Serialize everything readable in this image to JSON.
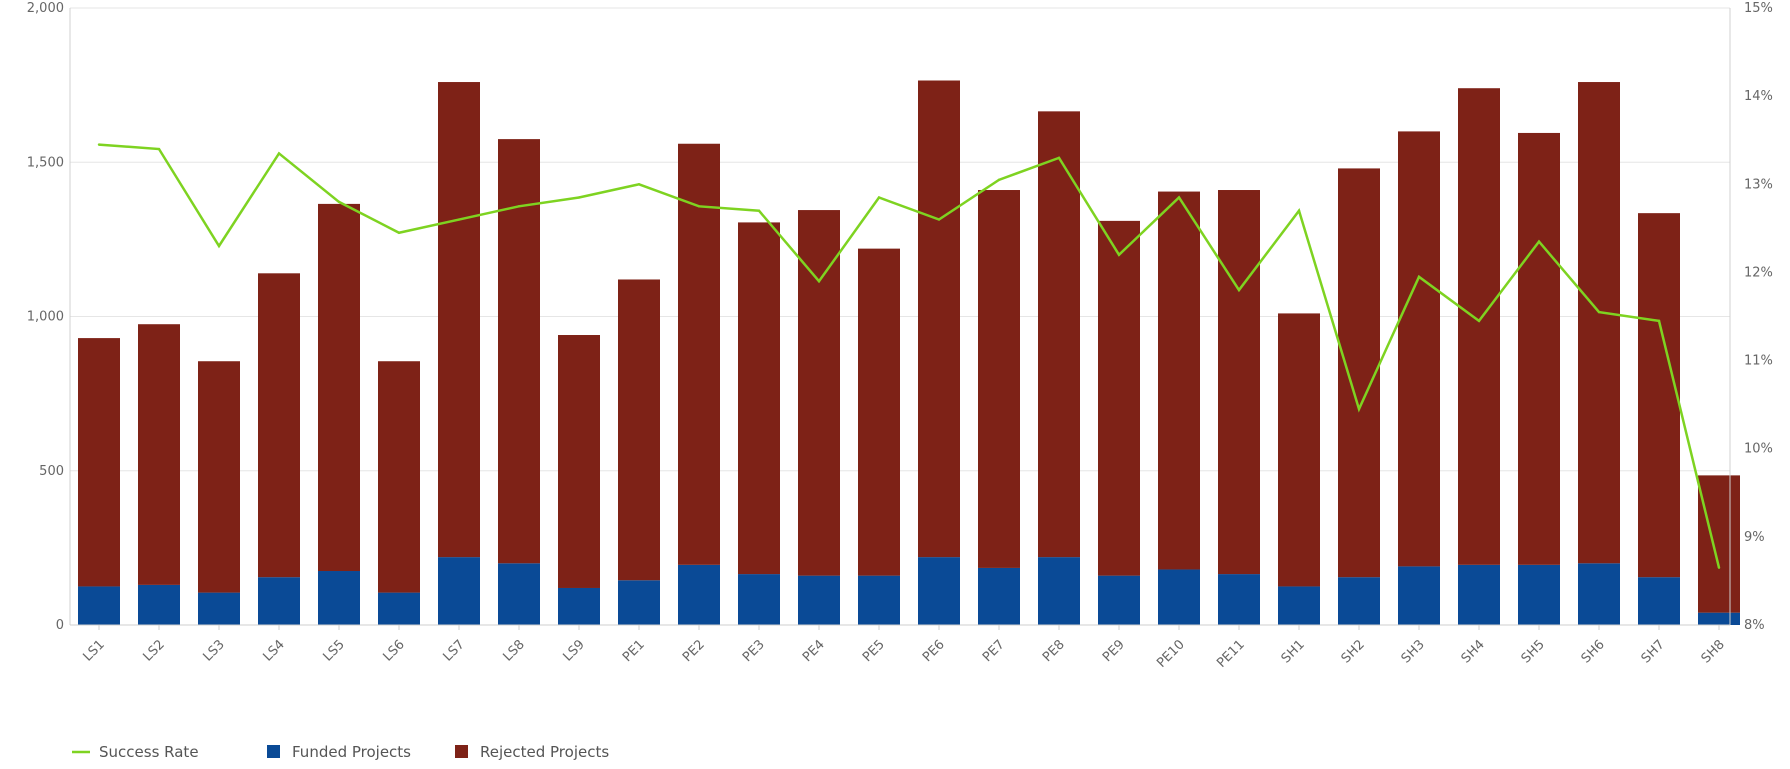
{
  "chart_data": {
    "type": "bar",
    "stacked": true,
    "categories": [
      "LS1",
      "LS2",
      "LS3",
      "LS4",
      "LS5",
      "LS6",
      "LS7",
      "LS8",
      "LS9",
      "PE1",
      "PE2",
      "PE3",
      "PE4",
      "PE5",
      "PE6",
      "PE7",
      "PE8",
      "PE9",
      "PE10",
      "PE11",
      "SH1",
      "SH2",
      "SH3",
      "SH4",
      "SH5",
      "SH6",
      "SH7",
      "SH8"
    ],
    "series": [
      {
        "name": "Funded Projects",
        "type": "bar",
        "axis": "left",
        "color": "#0a4a96",
        "values": [
          125,
          130,
          105,
          155,
          175,
          105,
          220,
          200,
          120,
          145,
          195,
          165,
          160,
          160,
          220,
          185,
          220,
          160,
          180,
          165,
          125,
          155,
          190,
          195,
          195,
          200,
          155,
          40
        ]
      },
      {
        "name": "Rejected Projects",
        "type": "bar",
        "axis": "left",
        "color": "#7e2217",
        "values": [
          805,
          845,
          750,
          985,
          1190,
          750,
          1540,
          1375,
          820,
          975,
          1365,
          1140,
          1185,
          1060,
          1545,
          1225,
          1445,
          1150,
          1225,
          1245,
          885,
          1325,
          1410,
          1545,
          1400,
          1560,
          1180,
          445
        ]
      },
      {
        "name": "Success Rate",
        "type": "line",
        "axis": "right",
        "color": "#7ed321",
        "values": [
          13.45,
          13.4,
          12.3,
          13.35,
          12.8,
          12.45,
          12.6,
          12.75,
          12.85,
          13.0,
          12.75,
          12.7,
          11.9,
          12.85,
          12.6,
          13.05,
          13.3,
          12.2,
          12.85,
          11.8,
          12.7,
          10.45,
          11.95,
          11.45,
          12.35,
          11.55,
          11.45,
          8.65
        ]
      }
    ],
    "y_left": {
      "min": 0,
      "max": 2000,
      "ticks": [
        0,
        500,
        1000,
        1500,
        2000
      ],
      "tick_labels": [
        "0",
        "500",
        "1,000",
        "1,500",
        "2,000"
      ]
    },
    "y_right": {
      "min": 8,
      "max": 15,
      "ticks": [
        8,
        9,
        10,
        11,
        12,
        13,
        14,
        15
      ],
      "tick_labels": [
        "8%",
        "9%",
        "10%",
        "11%",
        "12%",
        "13%",
        "14%",
        "15%"
      ]
    },
    "grid": true,
    "legend": {
      "position": "bottom-left",
      "items": [
        {
          "label": "Success Rate",
          "symbol": "line",
          "color": "#7ed321"
        },
        {
          "label": "Funded Projects",
          "symbol": "square",
          "color": "#0a4a96"
        },
        {
          "label": "Rejected Projects",
          "symbol": "square",
          "color": "#7e2217"
        }
      ]
    }
  }
}
